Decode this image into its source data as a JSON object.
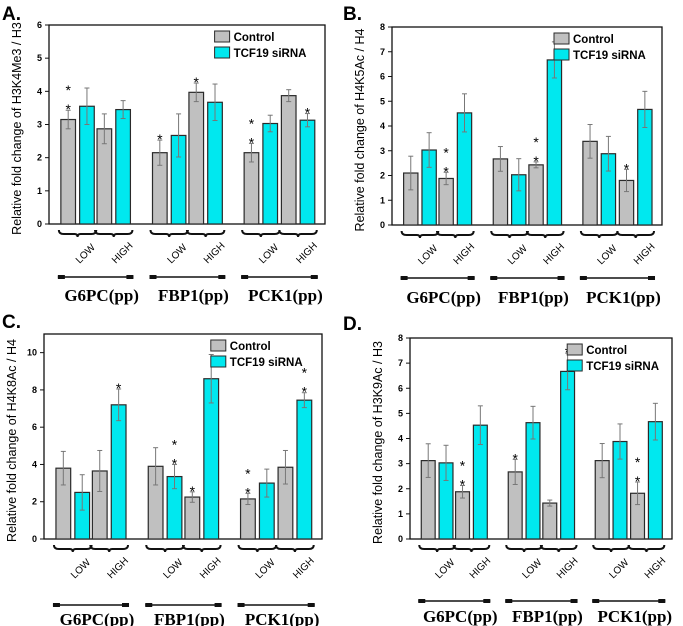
{
  "chart_data": [
    {
      "type": "bar",
      "panel_label": "A.",
      "ylabel": "Relative fold change of H3K4Me3 / H3",
      "ylim": [
        0,
        6
      ],
      "yticks": [
        0,
        1,
        2,
        3,
        4,
        5,
        6
      ],
      "legend": [
        "Control",
        "TCF19 siRNA"
      ],
      "legend_position": "top-right",
      "genes": [
        "G6PC(pp)",
        "FBP1(pp)",
        "PCK1(pp)"
      ],
      "levels": [
        "LOW",
        "HIGH"
      ],
      "groups": [
        {
          "gene": "G6PC(pp)",
          "level": "LOW",
          "control": 3.15,
          "control_err": 0.28,
          "sirna": 3.55,
          "sirna_err": 0.55,
          "control_sig": "**",
          "sirna_sig": ""
        },
        {
          "gene": "G6PC(pp)",
          "level": "HIGH",
          "control": 2.87,
          "control_err": 0.45,
          "sirna": 3.45,
          "sirna_err": 0.27,
          "control_sig": "",
          "sirna_sig": ""
        },
        {
          "gene": "FBP1(pp)",
          "level": "LOW",
          "control": 2.15,
          "control_err": 0.38,
          "sirna": 2.67,
          "sirna_err": 0.65,
          "control_sig": "*",
          "sirna_sig": ""
        },
        {
          "gene": "FBP1(pp)",
          "level": "HIGH",
          "control": 3.97,
          "control_err": 0.28,
          "sirna": 3.67,
          "sirna_err": 0.55,
          "control_sig": "*",
          "sirna_sig": ""
        },
        {
          "gene": "PCK1(pp)",
          "level": "LOW",
          "control": 2.15,
          "control_err": 0.28,
          "sirna": 3.03,
          "sirna_err": 0.25,
          "control_sig": "**",
          "sirna_sig": ""
        },
        {
          "gene": "PCK1(pp)",
          "level": "HIGH",
          "control": 3.87,
          "control_err": 0.18,
          "sirna": 3.13,
          "sirna_err": 0.2,
          "control_sig": "",
          "sirna_sig": "*"
        }
      ]
    },
    {
      "type": "bar",
      "panel_label": "B.",
      "ylabel": "Relative fold change of H4K5Ac / H4",
      "ylim": [
        0,
        8
      ],
      "yticks": [
        0,
        1,
        2,
        3,
        4,
        5,
        6,
        7,
        8
      ],
      "legend": [
        "Control",
        "TCF19 siRNA"
      ],
      "legend_position": "top-right",
      "genes": [
        "G6PC(pp)",
        "FBP1(pp)",
        "PCK1(pp)"
      ],
      "levels": [
        "LOW",
        "HIGH"
      ],
      "groups": [
        {
          "gene": "G6PC(pp)",
          "level": "LOW",
          "control": 2.1,
          "control_err": 0.68,
          "sirna": 3.03,
          "sirna_err": 0.7,
          "control_sig": "",
          "sirna_sig": ""
        },
        {
          "gene": "G6PC(pp)",
          "level": "HIGH",
          "control": 1.88,
          "control_err": 0.25,
          "sirna": 4.53,
          "sirna_err": 0.77,
          "control_sig": "**",
          "sirna_sig": ""
        },
        {
          "gene": "FBP1(pp)",
          "level": "LOW",
          "control": 2.67,
          "control_err": 0.5,
          "sirna": 2.03,
          "sirna_err": 0.65,
          "control_sig": "",
          "sirna_sig": ""
        },
        {
          "gene": "FBP1(pp)",
          "level": "HIGH",
          "control": 2.43,
          "control_err": 0.12,
          "sirna": 6.67,
          "sirna_err": 0.73,
          "control_sig": "**",
          "sirna_sig": ""
        },
        {
          "gene": "PCK1(pp)",
          "level": "LOW",
          "control": 3.38,
          "control_err": 0.68,
          "sirna": 2.88,
          "sirna_err": 0.7,
          "control_sig": "",
          "sirna_sig": ""
        },
        {
          "gene": "PCK1(pp)",
          "level": "HIGH",
          "control": 1.8,
          "control_err": 0.45,
          "sirna": 4.67,
          "sirna_err": 0.73,
          "control_sig": "*",
          "sirna_sig": ""
        }
      ]
    },
    {
      "type": "bar",
      "panel_label": "C.",
      "ylabel": "Relative fold change of H4K8Ac / H4",
      "ylim": [
        0,
        11
      ],
      "yticks": [
        0,
        2,
        4,
        6,
        8,
        10
      ],
      "legend": [
        "Control",
        "TCF19 siRNA"
      ],
      "legend_position": "top-right",
      "genes": [
        "G6PC(pp)",
        "FBP1(pp)",
        "PCK1(pp)"
      ],
      "levels": [
        "LOW",
        "HIGH"
      ],
      "groups": [
        {
          "gene": "G6PC(pp)",
          "level": "LOW",
          "control": 3.8,
          "control_err": 0.9,
          "sirna": 2.5,
          "sirna_err": 0.95,
          "control_sig": "",
          "sirna_sig": ""
        },
        {
          "gene": "G6PC(pp)",
          "level": "HIGH",
          "control": 3.65,
          "control_err": 1.1,
          "sirna": 7.2,
          "sirna_err": 0.85,
          "control_sig": "",
          "sirna_sig": "*"
        },
        {
          "gene": "FBP1(pp)",
          "level": "LOW",
          "control": 3.9,
          "control_err": 1.0,
          "sirna": 3.35,
          "sirna_err": 0.65,
          "control_sig": "",
          "sirna_sig": "**"
        },
        {
          "gene": "FBP1(pp)",
          "level": "HIGH",
          "control": 2.25,
          "control_err": 0.28,
          "sirna": 8.6,
          "sirna_err": 1.3,
          "control_sig": "*",
          "sirna_sig": ""
        },
        {
          "gene": "PCK1(pp)",
          "level": "LOW",
          "control": 2.15,
          "control_err": 0.3,
          "sirna": 3.0,
          "sirna_err": 0.75,
          "control_sig": "**",
          "sirna_sig": ""
        },
        {
          "gene": "PCK1(pp)",
          "level": "HIGH",
          "control": 3.85,
          "control_err": 0.9,
          "sirna": 7.45,
          "sirna_err": 0.4,
          "control_sig": "",
          "sirna_sig": "**"
        }
      ]
    },
    {
      "type": "bar",
      "panel_label": "D.",
      "ylabel": "Relative fold change of H3K9Ac / H3",
      "ylim": [
        0,
        8
      ],
      "yticks": [
        0,
        1,
        2,
        3,
        4,
        5,
        6,
        7,
        8
      ],
      "legend": [
        "Control",
        "TCF19 siRNA"
      ],
      "legend_position": "top-right",
      "genes": [
        "G6PC(pp)",
        "FBP1(pp)",
        "PCK1(pp)"
      ],
      "levels": [
        "LOW",
        "HIGH"
      ],
      "groups": [
        {
          "gene": "G6PC(pp)",
          "level": "LOW",
          "control": 3.12,
          "control_err": 0.67,
          "sirna": 3.03,
          "sirna_err": 0.7,
          "control_sig": "",
          "sirna_sig": ""
        },
        {
          "gene": "G6PC(pp)",
          "level": "HIGH",
          "control": 1.88,
          "control_err": 0.25,
          "sirna": 4.53,
          "sirna_err": 0.77,
          "control_sig": "**",
          "sirna_sig": ""
        },
        {
          "gene": "FBP1(pp)",
          "level": "LOW",
          "control": 2.67,
          "control_err": 0.5,
          "sirna": 4.63,
          "sirna_err": 0.65,
          "control_sig": "*",
          "sirna_sig": ""
        },
        {
          "gene": "FBP1(pp)",
          "level": "HIGH",
          "control": 1.43,
          "control_err": 0.12,
          "sirna": 6.67,
          "sirna_err": 0.73,
          "control_sig": "",
          "sirna_sig": "*"
        },
        {
          "gene": "PCK1(pp)",
          "level": "LOW",
          "control": 3.12,
          "control_err": 0.68,
          "sirna": 3.88,
          "sirna_err": 0.7,
          "control_sig": "",
          "sirna_sig": ""
        },
        {
          "gene": "PCK1(pp)",
          "level": "HIGH",
          "control": 1.82,
          "control_err": 0.45,
          "sirna": 4.67,
          "sirna_err": 0.73,
          "control_sig": "**",
          "sirna_sig": ""
        }
      ]
    }
  ],
  "colors": {
    "control": "#c0c0c0",
    "sirna": "#00e8ef",
    "edge": "#2a2a2a",
    "errbar": "#777777"
  }
}
